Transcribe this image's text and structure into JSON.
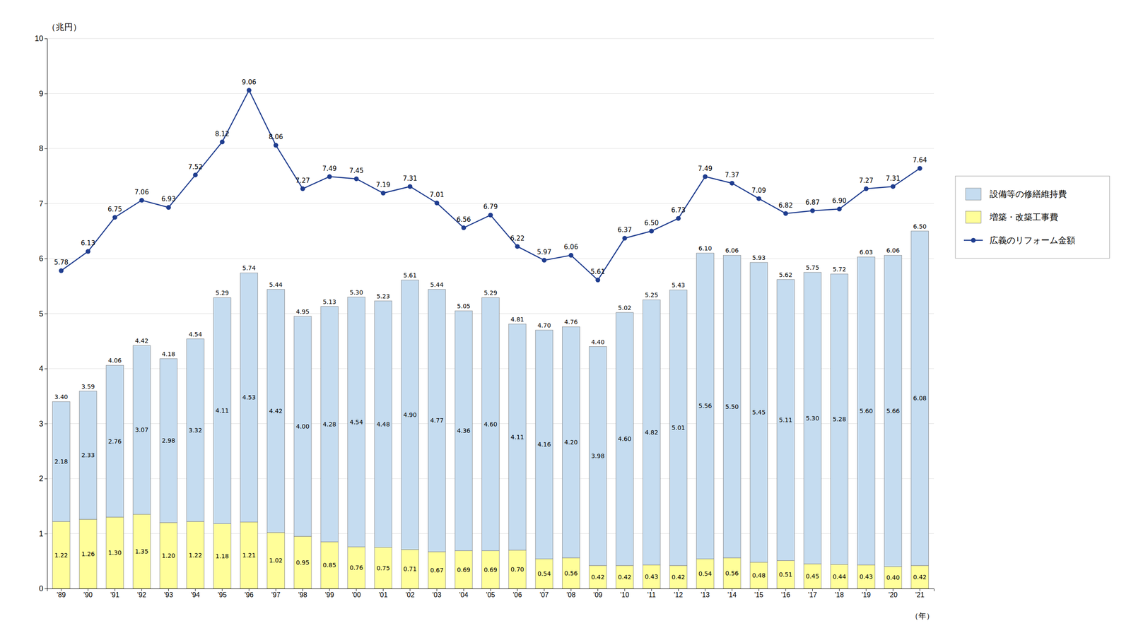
{
  "chart_data": {
    "type": "bar",
    "stacked": true,
    "data_labels": true,
    "grid": true,
    "legend": "right",
    "xlabel": "（年）",
    "ylabel": "（兆円）",
    "categories": [
      "'89",
      "'90",
      "'91",
      "'92",
      "'93",
      "'94",
      "'95",
      "'96",
      "'97",
      "'98",
      "'99",
      "'00",
      "'01",
      "'02",
      "'03",
      "'04",
      "'05",
      "'06",
      "'07",
      "'08",
      "'09",
      "'10",
      "'11",
      "'12",
      "'13",
      "'14",
      "'15",
      "'16",
      "'17",
      "'18",
      "'19",
      "'20",
      "'21"
    ],
    "ylim": [
      0,
      10
    ],
    "yticks": [
      0,
      1,
      2,
      3,
      4,
      5,
      6,
      7,
      8,
      9,
      10
    ],
    "series": [
      {
        "name": "増築・改築工事費",
        "type": "bar",
        "color": "#FFFE99",
        "values": [
          1.22,
          1.26,
          1.3,
          1.35,
          1.2,
          1.22,
          1.18,
          1.21,
          1.02,
          0.95,
          0.85,
          0.76,
          0.75,
          0.71,
          0.67,
          0.69,
          0.69,
          0.7,
          0.54,
          0.56,
          0.42,
          0.42,
          0.43,
          0.42,
          0.54,
          0.56,
          0.48,
          0.51,
          0.45,
          0.44,
          0.43,
          0.4,
          0.42
        ],
        "value_labels": [
          "1.22",
          "1.26",
          "1.30",
          "1.35",
          "1.20",
          "1.22",
          "1.18",
          "1.21",
          "1.02",
          "0.95",
          "0.85",
          "0.76",
          "0.75",
          "0.71",
          "0.67",
          "0.69",
          "0.69",
          "0.70",
          "0.54",
          "0.56",
          "0.42",
          "0.42",
          "0.43",
          "0.42",
          "0.54",
          "0.56",
          "0.48",
          "0.51",
          "0.45",
          "0.44",
          "0.43",
          "0.40",
          "0.42"
        ]
      },
      {
        "name": "設備等の修繕維持費",
        "type": "bar",
        "color": "#C5DCF0",
        "values": [
          2.18,
          2.33,
          2.76,
          3.07,
          2.98,
          3.32,
          4.11,
          4.53,
          4.42,
          4.0,
          4.28,
          4.54,
          4.48,
          4.9,
          4.77,
          4.36,
          4.6,
          4.11,
          4.16,
          4.2,
          3.98,
          4.6,
          4.82,
          5.01,
          5.56,
          5.5,
          5.45,
          5.11,
          5.3,
          5.28,
          5.6,
          5.66,
          6.08
        ],
        "value_labels": [
          "2.18",
          "2.33",
          "2.76",
          "3.07",
          "2.98",
          "3.32",
          "4.11",
          "4.53",
          "4.42",
          "4.00",
          "4.28",
          "4.54",
          "4.48",
          "4.90",
          "4.77",
          "4.36",
          "4.60",
          "4.11",
          "4.16",
          "4.20",
          "3.98",
          "4.60",
          "4.82",
          "5.01",
          "5.56",
          "5.50",
          "5.45",
          "5.11",
          "5.30",
          "5.28",
          "5.60",
          "5.66",
          "6.08"
        ]
      },
      {
        "name": "広義のリフォーム金額",
        "type": "line",
        "color": "#1F3D8F",
        "marker": "circle",
        "line_style": "solid",
        "values": [
          5.78,
          6.13,
          6.75,
          7.06,
          6.93,
          7.52,
          8.12,
          9.06,
          8.06,
          7.27,
          7.49,
          7.45,
          7.19,
          7.31,
          7.01,
          6.56,
          6.79,
          6.22,
          5.97,
          6.06,
          5.61,
          6.37,
          6.5,
          6.73,
          7.49,
          7.37,
          7.09,
          6.82,
          6.87,
          6.9,
          7.27,
          7.31,
          7.64
        ],
        "value_labels": [
          "5.78",
          "6.13",
          "6.75",
          "7.06",
          "6.93",
          "7.52",
          "8.12",
          "9.06",
          "8.06",
          "7.27",
          "7.49",
          "7.45",
          "7.19",
          "7.31",
          "7.01",
          "6.56",
          "6.79",
          "6.22",
          "5.97",
          "6.06",
          "5.61",
          "6.37",
          "6.50",
          "6.73",
          "7.49",
          "7.37",
          "7.09",
          "6.82",
          "6.87",
          "6.90",
          "7.27",
          "7.31",
          "7.64"
        ]
      }
    ],
    "totals": [
      3.4,
      3.59,
      4.06,
      4.42,
      4.18,
      4.54,
      5.29,
      5.74,
      5.44,
      4.95,
      5.13,
      5.3,
      5.23,
      5.61,
      5.44,
      5.05,
      5.29,
      4.81,
      4.7,
      4.76,
      4.4,
      5.02,
      5.25,
      5.43,
      6.1,
      6.06,
      5.93,
      5.62,
      5.75,
      5.72,
      6.03,
      6.06,
      6.5
    ],
    "total_labels": [
      "3.40",
      "3.59",
      "4.06",
      "4.42",
      "4.18",
      "4.54",
      "5.29",
      "5.74",
      "5.44",
      "4.95",
      "5.13",
      "5.30",
      "5.23",
      "5.61",
      "5.44",
      "5.05",
      "5.29",
      "4.81",
      "4.70",
      "4.76",
      "4.40",
      "5.02",
      "5.25",
      "5.43",
      "6.10",
      "6.06",
      "5.93",
      "5.62",
      "5.75",
      "5.72",
      "6.03",
      "6.06",
      "6.50"
    ]
  }
}
